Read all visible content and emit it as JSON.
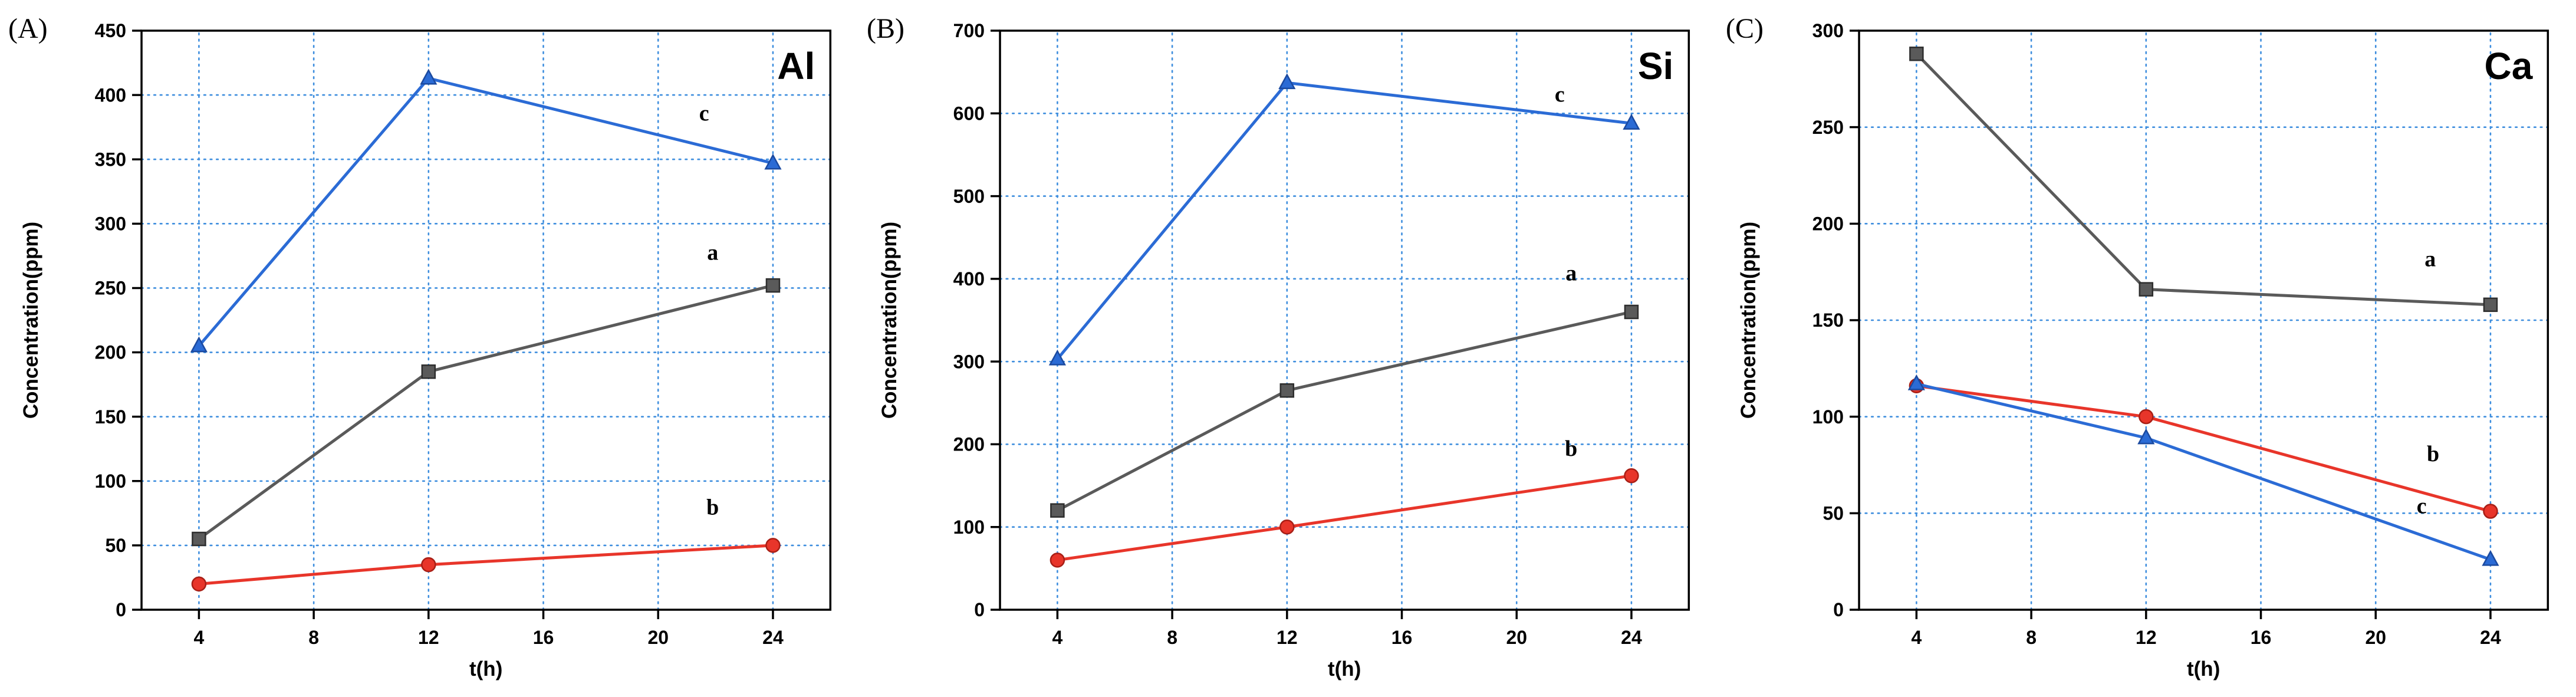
{
  "figure": {
    "background": "#ffffff",
    "description_labels": {
      "panel_a": "(A)",
      "panel_b": "(B)",
      "panel_c": "(C)"
    }
  },
  "style": {
    "grid_color": "#3e8ede",
    "axis_color": "#000000",
    "text_color": "#000000"
  },
  "chart_data": [
    {
      "type": "line",
      "panel_label": "(A)",
      "title": "Al",
      "xlabel": "t(h)",
      "ylabel": "Concentration(ppm)",
      "x": [
        4,
        12,
        24
      ],
      "xticks": [
        4,
        8,
        12,
        16,
        20,
        24
      ],
      "xlim": [
        2,
        26
      ],
      "ylim": [
        0,
        450
      ],
      "ytick_step": 50,
      "grid": true,
      "legend": "none",
      "series": [
        {
          "name": "a",
          "marker": "square",
          "color": "#5a5a5a",
          "edge": "#2e2e2e",
          "values": [
            55,
            185,
            252
          ],
          "label": {
            "x": 21.9,
            "y": 272
          }
        },
        {
          "name": "b",
          "marker": "circle",
          "color": "#e8352a",
          "edge": "#a81f16",
          "values": [
            20,
            35,
            50
          ],
          "label": {
            "x": 21.9,
            "y": 74
          }
        },
        {
          "name": "c",
          "marker": "triangle",
          "color": "#2b6bd5",
          "edge": "#1b4aa0",
          "values": [
            205,
            413,
            347
          ],
          "label": {
            "x": 21.6,
            "y": 380
          }
        }
      ]
    },
    {
      "type": "line",
      "panel_label": "(B)",
      "title": "Si",
      "xlabel": "t(h)",
      "ylabel": "Concentration(ppm)",
      "x": [
        4,
        12,
        24
      ],
      "xticks": [
        4,
        8,
        12,
        16,
        20,
        24
      ],
      "xlim": [
        2,
        26
      ],
      "ylim": [
        0,
        700
      ],
      "ytick_step": 100,
      "grid": true,
      "legend": "none",
      "series": [
        {
          "name": "a",
          "marker": "square",
          "color": "#5a5a5a",
          "edge": "#2e2e2e",
          "values": [
            120,
            265,
            360
          ],
          "label": {
            "x": 21.9,
            "y": 398
          }
        },
        {
          "name": "b",
          "marker": "circle",
          "color": "#e8352a",
          "edge": "#a81f16",
          "values": [
            60,
            100,
            162
          ],
          "label": {
            "x": 21.9,
            "y": 186
          }
        },
        {
          "name": "c",
          "marker": "triangle",
          "color": "#2b6bd5",
          "edge": "#1b4aa0",
          "values": [
            303,
            637,
            588
          ],
          "label": {
            "x": 21.5,
            "y": 614
          }
        }
      ]
    },
    {
      "type": "line",
      "panel_label": "(C)",
      "title": "Ca",
      "xlabel": "t(h)",
      "ylabel": "Concentration(ppm)",
      "x": [
        4,
        12,
        24
      ],
      "xticks": [
        4,
        8,
        12,
        16,
        20,
        24
      ],
      "xlim": [
        2,
        26
      ],
      "ylim": [
        0,
        300
      ],
      "ytick_step": 50,
      "grid": true,
      "legend": "none",
      "series": [
        {
          "name": "a",
          "marker": "square",
          "color": "#5a5a5a",
          "edge": "#2e2e2e",
          "values": [
            288,
            166,
            158
          ],
          "label": {
            "x": 21.9,
            "y": 178
          }
        },
        {
          "name": "b",
          "marker": "circle",
          "color": "#e8352a",
          "edge": "#a81f16",
          "values": [
            116,
            100,
            51
          ],
          "label": {
            "x": 22.0,
            "y": 77
          }
        },
        {
          "name": "c",
          "marker": "triangle",
          "color": "#2b6bd5",
          "edge": "#1b4aa0",
          "values": [
            117,
            89,
            26
          ],
          "label": {
            "x": 21.6,
            "y": 50
          }
        }
      ]
    }
  ]
}
